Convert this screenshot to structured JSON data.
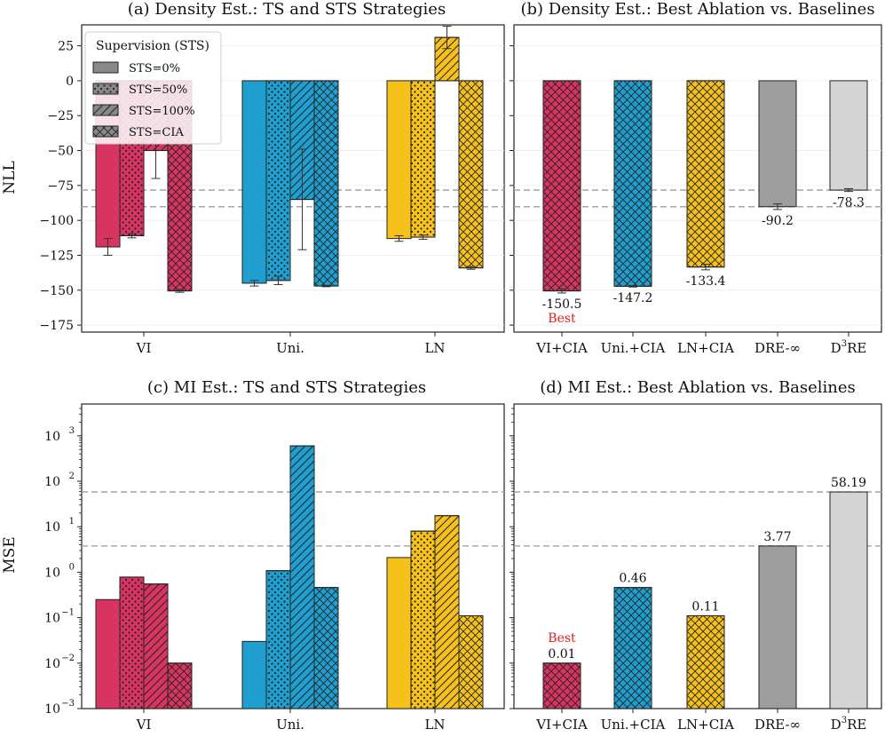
{
  "colors": {
    "VI": "#d83462",
    "Uni": "#1f9fcf",
    "LN": "#f7c11c",
    "DRE": "#9d9d9d",
    "D3RE": "#d4d4d4",
    "best": "#e31a1c",
    "ref": "#aaaaaa"
  },
  "chart_data": [
    {
      "id": "a",
      "type": "bar",
      "title": "(a) Density Est.: TS and STS Strategies",
      "ylabel": "NLL",
      "ylim": [
        -180,
        40
      ],
      "yticks": [
        25,
        0,
        -25,
        -50,
        -75,
        -100,
        -125,
        -150,
        -175
      ],
      "ytick_labels": [
        "25",
        "0",
        "−25",
        "−50",
        "−75",
        "−100",
        "−125",
        "−150",
        "−175"
      ],
      "categories": [
        "VI",
        "Uni.",
        "LN"
      ],
      "series": [
        {
          "name": "STS=0%",
          "pattern": "solid",
          "values": [
            -119,
            -145,
            -113
          ],
          "errors": [
            6,
            2,
            2
          ]
        },
        {
          "name": "STS=50%",
          "pattern": "dots",
          "values": [
            -111,
            -143,
            -112
          ],
          "errors": [
            1.5,
            3,
            1.5
          ]
        },
        {
          "name": "STS=100%",
          "pattern": "hatch",
          "values": [
            -50,
            -85,
            31
          ],
          "errors": [
            20,
            36,
            8
          ]
        },
        {
          "name": "STS=CIA",
          "pattern": "cross",
          "values": [
            -150.5,
            -147,
            -134
          ],
          "errors": [
            1,
            0.5,
            1
          ]
        }
      ],
      "ref_lines": [
        -78.3,
        -90.2
      ],
      "legend": {
        "title": "Supervision (STS)",
        "entries": [
          "STS=0%",
          "STS=50%",
          "STS=100%",
          "STS=CIA"
        ],
        "placement": "top-left"
      }
    },
    {
      "id": "b",
      "type": "bar",
      "title": "(b) Density Est.: Best Ablation vs. Baselines",
      "ylim": [
        -180,
        40
      ],
      "categories": [
        "VI+CIA",
        "Uni.+CIA",
        "LN+CIA",
        "DRE-∞",
        "D3RE"
      ],
      "values": [
        -150.5,
        -147.2,
        -133.4,
        -90.2,
        -78.3
      ],
      "errors": [
        1.5,
        0.5,
        2,
        2,
        1
      ],
      "value_labels": [
        "-150.5",
        "-147.2",
        "-133.4",
        "-90.2",
        "-78.3"
      ],
      "patterns": [
        "cross",
        "cross",
        "cross",
        "solid",
        "solid"
      ],
      "best_label": "Best",
      "ref_lines": [
        -78.3,
        -90.2
      ]
    },
    {
      "id": "c",
      "type": "bar",
      "title": "(c) MI Est.: TS and STS Strategies",
      "ylabel": "MSE",
      "yscale": "log",
      "ylim": [
        0.001,
        5000
      ],
      "yticks": [
        0.001,
        0.01,
        0.1,
        1,
        10,
        100,
        1000
      ],
      "ytick_base": "10",
      "ytick_exps": [
        "−3",
        "−2",
        "−1",
        "0",
        "1",
        "2",
        "3"
      ],
      "categories": [
        "VI",
        "Uni.",
        "LN"
      ],
      "series": [
        {
          "name": "STS=0%",
          "pattern": "solid",
          "values": [
            0.25,
            0.03,
            2.1
          ]
        },
        {
          "name": "STS=50%",
          "pattern": "dots",
          "values": [
            0.78,
            1.08,
            8
          ]
        },
        {
          "name": "STS=100%",
          "pattern": "hatch",
          "values": [
            0.55,
            600,
            17.5
          ]
        },
        {
          "name": "STS=CIA",
          "pattern": "cross",
          "values": [
            0.01,
            0.46,
            0.11
          ]
        }
      ],
      "ref_lines": [
        3.77,
        58.19
      ]
    },
    {
      "id": "d",
      "type": "bar",
      "title": "(d) MI Est.: Best Ablation vs. Baselines",
      "yscale": "log",
      "ylim": [
        0.001,
        5000
      ],
      "categories": [
        "VI+CIA",
        "Uni.+CIA",
        "LN+CIA",
        "DRE-∞",
        "D3RE"
      ],
      "values": [
        0.01,
        0.46,
        0.11,
        3.77,
        58.19
      ],
      "value_labels": [
        "0.01",
        "0.46",
        "0.11",
        "3.77",
        "58.19"
      ],
      "patterns": [
        "cross",
        "cross",
        "cross",
        "solid",
        "solid"
      ],
      "best_label": "Best",
      "ref_lines": [
        3.77,
        58.19
      ]
    }
  ]
}
